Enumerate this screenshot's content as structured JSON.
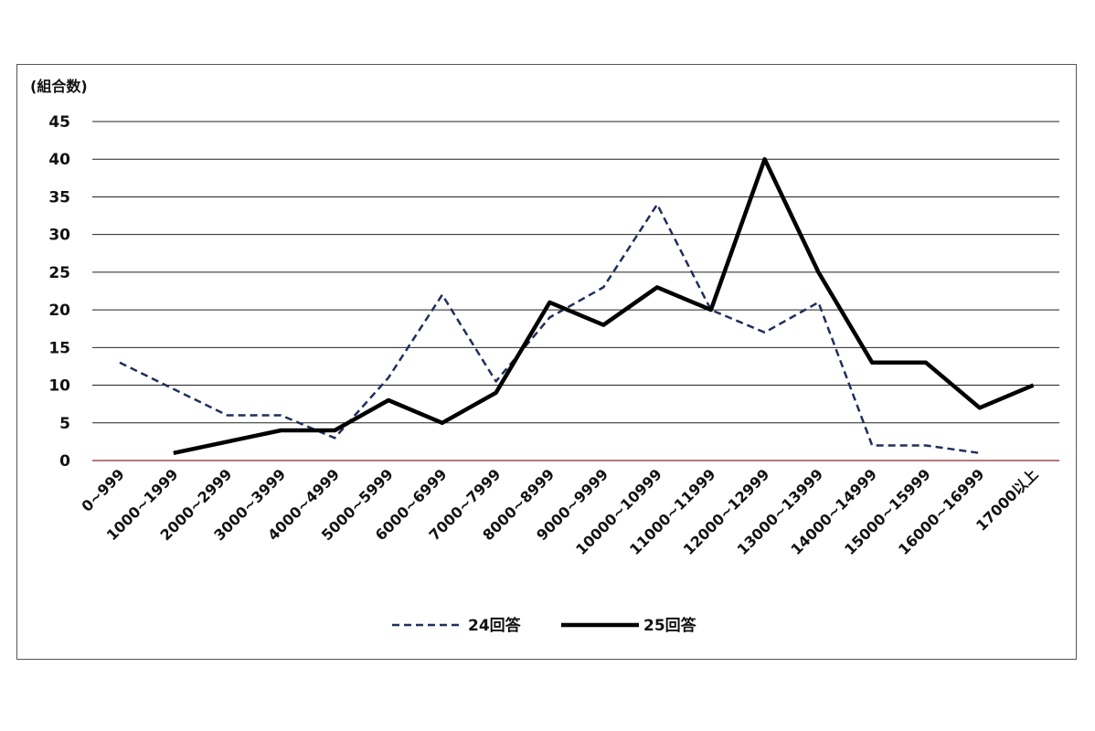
{
  "chart_data": {
    "type": "line",
    "ylabel": "(組合数)",
    "ylim": [
      0,
      45
    ],
    "yticks": [
      0,
      5,
      10,
      15,
      20,
      25,
      30,
      35,
      40,
      45
    ],
    "grid": true,
    "legend_position": "bottom",
    "categories": [
      "0~999",
      "1000~1999",
      "2000~2999",
      "3000~3999",
      "4000~4999",
      "5000~5999",
      "6000~6999",
      "7000~7999",
      "8000~8999",
      "9000~9999",
      "10000~10999",
      "11000~11999",
      "12000~12999",
      "13000~13999",
      "14000~14999",
      "15000~15999",
      "16000~16999",
      "17000以上"
    ],
    "series": [
      {
        "name": "24回答",
        "style": "dashed",
        "color": "#1f2f5a",
        "values": [
          13,
          9.5,
          6,
          6,
          3,
          11,
          22,
          10.5,
          19,
          23,
          34,
          20,
          17,
          21,
          2,
          2,
          1,
          null
        ]
      },
      {
        "name": "25回答",
        "style": "solid",
        "color": "#000000",
        "values": [
          null,
          1,
          2.5,
          4,
          4,
          8,
          5,
          9,
          21,
          18,
          23,
          20,
          40,
          25,
          13,
          13,
          7,
          10
        ]
      }
    ]
  }
}
